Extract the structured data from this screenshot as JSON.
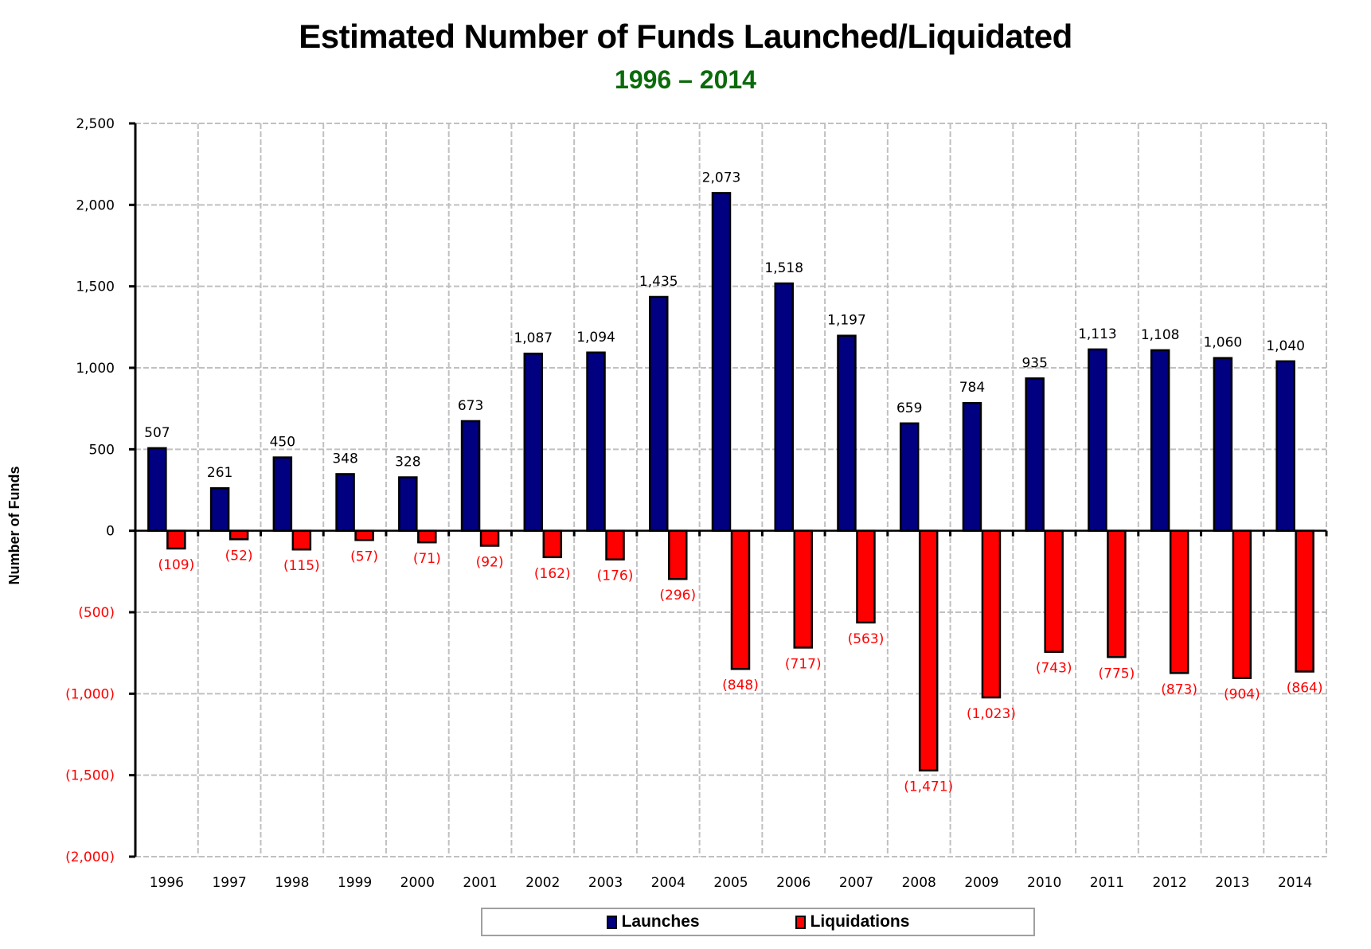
{
  "chart_data": {
    "type": "bar",
    "title": "Estimated Number of Funds Launched/Liquidated",
    "subtitle": "1996 – 2014",
    "xlabel": "",
    "ylabel": "Number of Funds",
    "ylim": [
      -2000,
      2500
    ],
    "yticks": [
      2500,
      2000,
      1500,
      1000,
      500,
      0,
      -500,
      -1000,
      -1500,
      -2000
    ],
    "ytick_labels": [
      "2,500",
      "2,000",
      "1,500",
      "1,000",
      "500",
      "0",
      "(500)",
      "(1,000)",
      "(1,500)",
      "(2,000)"
    ],
    "grid": true,
    "legend_position": "bottom-center",
    "categories": [
      "1996",
      "1997",
      "1998",
      "1999",
      "2000",
      "2001",
      "2002",
      "2003",
      "2004",
      "2005",
      "2006",
      "2007",
      "2008",
      "2009",
      "2010",
      "2011",
      "2012",
      "2013",
      "2014"
    ],
    "series": [
      {
        "name": "Launches",
        "color": "#000080",
        "values": [
          507,
          261,
          450,
          348,
          328,
          673,
          1087,
          1094,
          1435,
          2073,
          1518,
          1197,
          659,
          784,
          935,
          1113,
          1108,
          1060,
          1040
        ],
        "labels": [
          "507",
          "261",
          "450",
          "348",
          "328",
          "673",
          "1,087",
          "1,094",
          "1,435",
          "2,073",
          "1,518",
          "1,197",
          "659",
          "784",
          "935",
          "1,113",
          "1,108",
          "1,060",
          "1,040"
        ]
      },
      {
        "name": "Liquidations",
        "color": "#ff0000",
        "values": [
          -109,
          -52,
          -115,
          -57,
          -71,
          -92,
          -162,
          -176,
          -296,
          -848,
          -717,
          -563,
          -1471,
          -1023,
          -743,
          -775,
          -873,
          -904,
          -864
        ],
        "labels": [
          "(109)",
          "(52)",
          "(115)",
          "(57)",
          "(71)",
          "(92)",
          "(162)",
          "(176)",
          "(296)",
          "(848)",
          "(717)",
          "(563)",
          "(1,471)",
          "(1,023)",
          "(743)",
          "(775)",
          "(873)",
          "(904)",
          "(864)"
        ]
      }
    ]
  },
  "colors": {
    "subtitle": "#0b6a0b",
    "positive_tick": "#000000",
    "negative_tick": "#ff0000",
    "negative_label": "#ff0000",
    "gridline": "#c0c0c0"
  }
}
